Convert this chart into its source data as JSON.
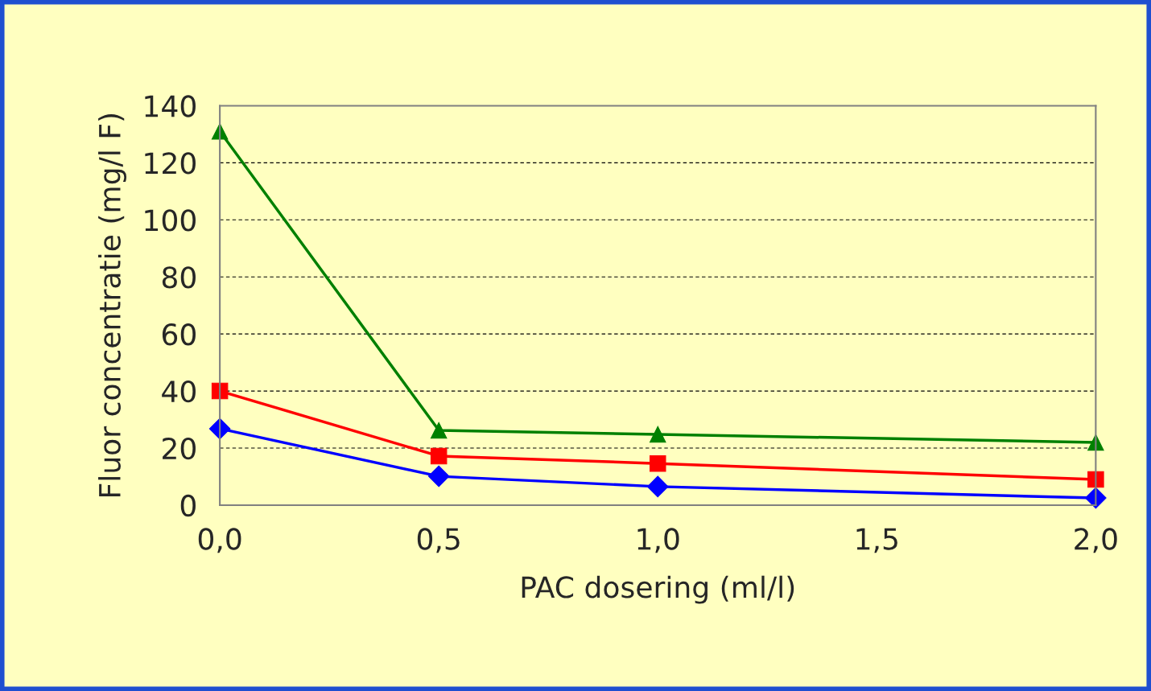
{
  "chart_data": {
    "type": "line",
    "xlabel": "PAC dosering (ml/l)",
    "ylabel": "Fluor concentratie (mg/l F)",
    "x": [
      0,
      0.5,
      1.0,
      2.0
    ],
    "xlim": [
      0,
      2
    ],
    "xticks": [
      {
        "value": 0,
        "label": "0,0"
      },
      {
        "value": 0.5,
        "label": "0,5"
      },
      {
        "value": 1.0,
        "label": "1,0"
      },
      {
        "value": 1.5,
        "label": "1,5"
      },
      {
        "value": 2.0,
        "label": "2,0"
      }
    ],
    "ylim": [
      0,
      140
    ],
    "yticks": [
      0,
      20,
      40,
      60,
      80,
      100,
      120,
      140
    ],
    "grid": "y",
    "line_style": "solid",
    "series": [
      {
        "color": "#0000ff",
        "marker": "diamond",
        "values": [
          26.8,
          10.1,
          6.5,
          2.5
        ]
      },
      {
        "color": "#ff0000",
        "marker": "square",
        "values": [
          40,
          17.2,
          14.6,
          9
        ]
      },
      {
        "color": "#008000",
        "marker": "triangle",
        "values": [
          131,
          26.2,
          24.8,
          22
        ]
      }
    ]
  }
}
